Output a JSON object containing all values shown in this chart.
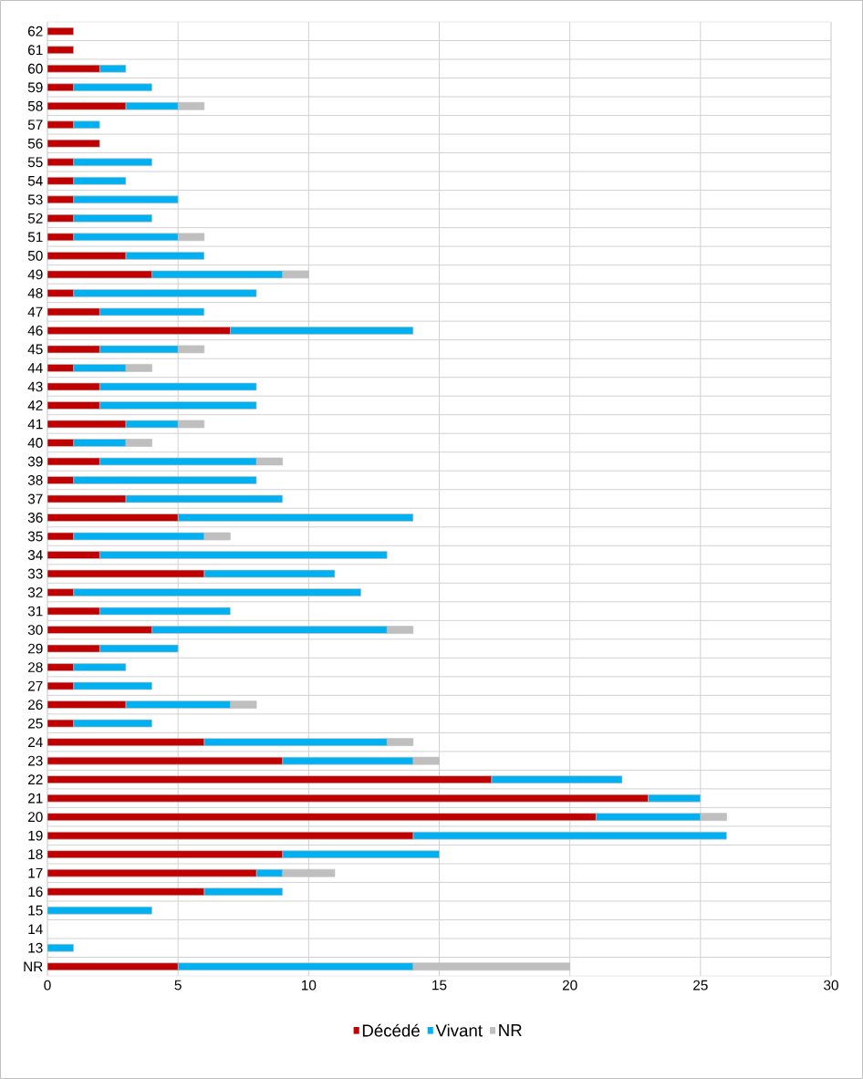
{
  "chart_data": {
    "type": "bar",
    "orientation": "horizontal",
    "stacked": true,
    "grid": true,
    "legend": "bottom",
    "categories": [
      "62",
      "61",
      "60",
      "59",
      "58",
      "57",
      "56",
      "55",
      "54",
      "53",
      "52",
      "51",
      "50",
      "49",
      "48",
      "47",
      "46",
      "45",
      "44",
      "43",
      "42",
      "41",
      "40",
      "39",
      "38",
      "37",
      "36",
      "35",
      "34",
      "33",
      "32",
      "31",
      "30",
      "29",
      "28",
      "27",
      "26",
      "25",
      "24",
      "23",
      "22",
      "21",
      "20",
      "19",
      "18",
      "17",
      "16",
      "15",
      "14",
      "13",
      "NR"
    ],
    "series": [
      {
        "name": "Décédé",
        "color": "#c00000",
        "values": [
          1,
          1,
          2,
          1,
          3,
          1,
          2,
          1,
          1,
          1,
          1,
          1,
          3,
          4,
          1,
          2,
          7,
          2,
          1,
          2,
          2,
          3,
          1,
          2,
          1,
          3,
          5,
          1,
          2,
          6,
          1,
          2,
          4,
          2,
          1,
          1,
          3,
          1,
          6,
          9,
          17,
          23,
          21,
          14,
          9,
          8,
          6,
          0,
          0,
          0,
          5
        ]
      },
      {
        "name": "Vivant",
        "color": "#00b0f0",
        "values": [
          0,
          0,
          1,
          3,
          2,
          1,
          0,
          3,
          2,
          4,
          3,
          4,
          3,
          5,
          7,
          4,
          7,
          3,
          2,
          6,
          6,
          2,
          2,
          6,
          7,
          6,
          9,
          5,
          11,
          5,
          11,
          5,
          9,
          3,
          2,
          3,
          4,
          3,
          7,
          5,
          5,
          2,
          4,
          12,
          6,
          1,
          3,
          4,
          0,
          1,
          9
        ]
      },
      {
        "name": "NR",
        "color": "#bfbfbf",
        "values": [
          0,
          0,
          0,
          0,
          1,
          0,
          0,
          0,
          0,
          0,
          0,
          1,
          0,
          1,
          0,
          0,
          0,
          1,
          1,
          0,
          0,
          1,
          1,
          1,
          0,
          0,
          0,
          1,
          0,
          0,
          0,
          0,
          1,
          0,
          0,
          0,
          1,
          0,
          1,
          1,
          0,
          0,
          1,
          0,
          0,
          2,
          0,
          0,
          0,
          0,
          6
        ]
      }
    ],
    "xlim": [
      0,
      30
    ],
    "xticks": [
      0,
      5,
      10,
      15,
      20,
      25,
      30
    ]
  }
}
